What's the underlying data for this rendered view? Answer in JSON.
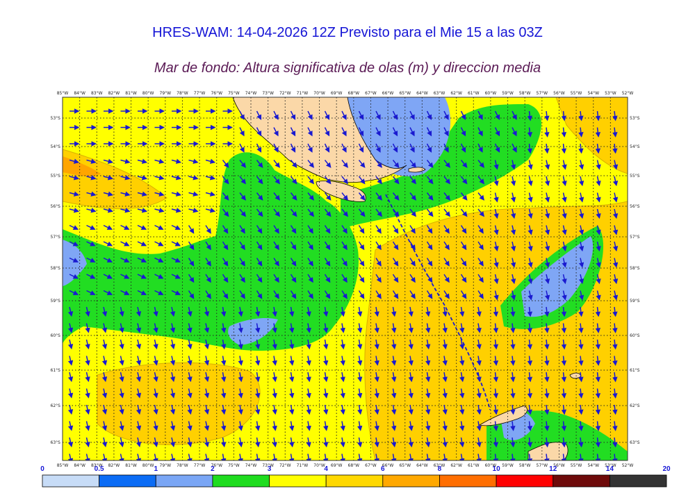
{
  "title": "HRES-WAM: 14-04-2026 12Z Previsto para el Mie 15 a las 03Z",
  "subtitle": "Mar de fondo: Altura significativa de olas (m) y direccion media",
  "map": {
    "lon_labels": [
      "85°W",
      "84°W",
      "83°W",
      "82°W",
      "81°W",
      "80°W",
      "79°W",
      "78°W",
      "77°W",
      "76°W",
      "75°W",
      "74°W",
      "73°W",
      "72°W",
      "71°W",
      "70°W",
      "69°W",
      "68°W",
      "67°W",
      "66°W",
      "65°W",
      "64°W",
      "63°W",
      "62°W",
      "61°W",
      "60°W",
      "59°W",
      "58°W",
      "57°W",
      "56°W",
      "55°W",
      "54°W",
      "53°W",
      "52°W"
    ],
    "lat_labels": [
      "53°S",
      "54°S",
      "55°S",
      "56°S",
      "57°S",
      "58°S",
      "59°S",
      "60°S",
      "61°S",
      "62°S",
      "63°S"
    ],
    "colors": {
      "land": "#fbd8a8",
      "sea_light_blue": "#7fa6f5",
      "sea_green": "#22dd22",
      "sea_yellow": "#ffff00",
      "sea_gold": "#ffd000",
      "sea_orange": "#ffa500",
      "arrows": "#1a1ad0",
      "frame": "#333333"
    }
  },
  "colorbar": {
    "ticks": [
      "0",
      "0.5",
      "1",
      "2",
      "3",
      "4",
      "6",
      "8",
      "10",
      "12",
      "14",
      "20"
    ],
    "colors": [
      "#c7dcf7",
      "#0b6cf5",
      "#7aa6f5",
      "#1fdc1f",
      "#ffff00",
      "#ffd800",
      "#ffa800",
      "#ff6e00",
      "#ff0000",
      "#6e0a0a",
      "#333333"
    ]
  }
}
